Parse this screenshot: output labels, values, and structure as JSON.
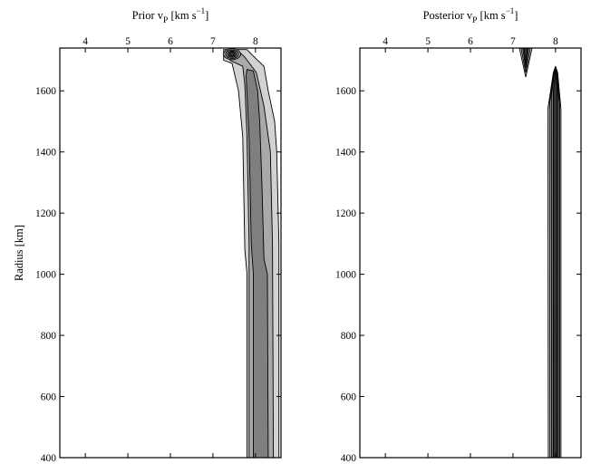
{
  "chart_data": [
    {
      "type": "contour",
      "panel": "left",
      "title": "Prior v",
      "title_subscript": "P",
      "title_unit": " [km s",
      "title_superscript": "−1",
      "title_close": "]",
      "xlabel_position": "top",
      "xlim": [
        3.4,
        8.6
      ],
      "xticks": [
        4,
        5,
        6,
        7,
        8
      ],
      "ylabel": "Radius [km]",
      "ylim": [
        400,
        1740
      ],
      "yticks": [
        400,
        600,
        800,
        1000,
        1200,
        1400,
        1600
      ],
      "levels": [
        {
          "color": "#d2d2d2",
          "left": [
            [
              400,
              7.8
            ],
            [
              1000,
              7.8
            ],
            [
              1080,
              7.75
            ],
            [
              1450,
              7.7
            ],
            [
              1600,
              7.6
            ],
            [
              1690,
              7.45
            ],
            [
              1700,
              7.25
            ],
            [
              1735,
              7.25
            ]
          ],
          "right": [
            [
              400,
              8.55
            ],
            [
              1100,
              8.55
            ],
            [
              1400,
              8.5
            ],
            [
              1500,
              8.45
            ],
            [
              1600,
              8.3
            ],
            [
              1680,
              8.2
            ],
            [
              1720,
              7.9
            ],
            [
              1735,
              7.8
            ]
          ]
        },
        {
          "color": "#a9a9a9",
          "left": [
            [
              400,
              7.85
            ],
            [
              1100,
              7.85
            ],
            [
              1450,
              7.8
            ],
            [
              1620,
              7.75
            ],
            [
              1680,
              7.7
            ],
            [
              1700,
              7.4
            ],
            [
              1730,
              7.35
            ]
          ],
          "right": [
            [
              400,
              8.42
            ],
            [
              1100,
              8.4
            ],
            [
              1400,
              8.35
            ],
            [
              1550,
              8.2
            ],
            [
              1660,
              8.02
            ],
            [
              1710,
              7.75
            ],
            [
              1730,
              7.6
            ]
          ]
        },
        {
          "color": "#7f7f7f",
          "left": [
            [
              400,
              7.95
            ],
            [
              1000,
              7.95
            ],
            [
              1100,
              7.9
            ],
            [
              1450,
              7.85
            ],
            [
              1650,
              7.78
            ],
            [
              1670,
              7.8
            ]
          ],
          "right": [
            [
              400,
              8.3
            ],
            [
              1000,
              8.28
            ],
            [
              1050,
              8.2
            ],
            [
              1300,
              8.15
            ],
            [
              1500,
              8.1
            ],
            [
              1600,
              8.05
            ],
            [
              1665,
              7.95
            ]
          ]
        }
      ],
      "blobs": [
        {
          "center": [
            7.45,
            1720
          ],
          "rings": [
            [
              0.2,
              18,
              "#a9a9a9"
            ],
            [
              0.15,
              14,
              "#7f7f7f"
            ],
            [
              0.1,
              10,
              "#555555"
            ],
            [
              0.06,
              6,
              "#333333"
            ]
          ]
        }
      ]
    },
    {
      "type": "contour",
      "panel": "right",
      "title": "Posterior v",
      "title_subscript": "P",
      "title_unit": " [km s",
      "title_superscript": "−1",
      "title_close": "]",
      "xlabel_position": "top",
      "xlim": [
        3.4,
        8.6
      ],
      "xticks": [
        4,
        5,
        6,
        7,
        8
      ],
      "ylabel": "",
      "ylim": [
        400,
        1740
      ],
      "yticks": [
        400,
        600,
        800,
        1000,
        1200,
        1400,
        1600
      ],
      "levels": [
        {
          "color": "#d9d9d9",
          "left": [
            [
              400,
              7.83
            ],
            [
              1540,
              7.82
            ],
            [
              1660,
              7.95
            ],
            [
              1680,
              8.0
            ]
          ],
          "right": [
            [
              400,
              8.13
            ],
            [
              1540,
              8.13
            ],
            [
              1660,
              8.05
            ],
            [
              1680,
              8.0
            ]
          ]
        },
        {
          "color": "#a6a6a6",
          "left": [
            [
              400,
              7.87
            ],
            [
              1560,
              7.86
            ],
            [
              1665,
              7.97
            ],
            [
              1678,
              8.0
            ]
          ],
          "right": [
            [
              400,
              8.1
            ],
            [
              1560,
              8.1
            ],
            [
              1665,
              8.03
            ],
            [
              1678,
              8.0
            ]
          ]
        },
        {
          "color": "#6e6e6e",
          "left": [
            [
              400,
              7.91
            ],
            [
              1580,
              7.9
            ],
            [
              1670,
              7.98
            ]
          ],
          "right": [
            [
              400,
              8.07
            ],
            [
              1580,
              8.07
            ],
            [
              1670,
              8.02
            ]
          ]
        },
        {
          "color": "#333333",
          "left": [
            [
              400,
              7.95
            ],
            [
              1600,
              7.95
            ],
            [
              1670,
              8.0
            ]
          ],
          "right": [
            [
              400,
              8.04
            ],
            [
              1600,
              8.04
            ],
            [
              1670,
              8.0
            ]
          ]
        }
      ],
      "blobs": [
        {
          "triangle": true,
          "center": [
            7.3,
            1700
          ],
          "rings": [
            [
              [
                7.15,
                1740
              ],
              [
                7.45,
                1740
              ],
              [
                7.3,
                1645
              ],
              "#d9d9d9"
            ],
            [
              [
                7.19,
                1740
              ],
              [
                7.41,
                1740
              ],
              [
                7.3,
                1660
              ],
              "#a6a6a6"
            ],
            [
              [
                7.23,
                1740
              ],
              [
                7.37,
                1740
              ],
              [
                7.3,
                1675
              ],
              "#6e6e6e"
            ],
            [
              [
                7.26,
                1740
              ],
              [
                7.34,
                1740
              ],
              [
                7.3,
                1690
              ],
              "#333333"
            ]
          ]
        }
      ]
    }
  ]
}
